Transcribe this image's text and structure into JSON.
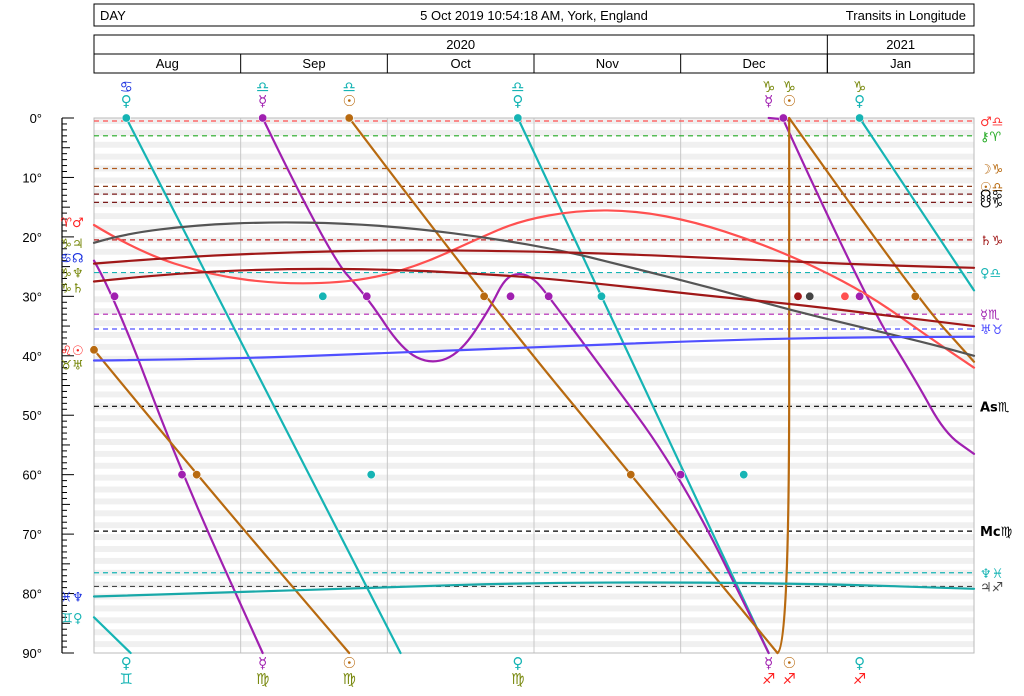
{
  "header": {
    "mode": "DAY",
    "datetime": "5 Oct 2019 10:54:18 AM, York, England",
    "label": "Transits in Longitude"
  },
  "chart_data": {
    "type": "line",
    "years": [
      {
        "label": "2020",
        "start": 0,
        "end": 5
      },
      {
        "label": "2021",
        "start": 5,
        "end": 6
      }
    ],
    "months": [
      "Aug",
      "Sep",
      "Oct",
      "Nov",
      "Dec",
      "Jan"
    ],
    "ylim": [
      0,
      90
    ],
    "y_ticks": [
      "0°",
      "10°",
      "20°",
      "30°",
      "40°",
      "50°",
      "60°",
      "70°",
      "80°",
      "90°"
    ],
    "natal_lines": [
      {
        "y": 0.5,
        "color": "#ff5050",
        "label": "♂♎",
        "label_colors": [
          "#ff3030",
          "#16b4b4"
        ]
      },
      {
        "y": 3,
        "color": "#22aa22",
        "label": "⚷♈",
        "label_colors": [
          "#22aa22",
          "#ff2020"
        ]
      },
      {
        "y": 8.5,
        "color": "#b05a1e",
        "label": "☽♑",
        "label_colors": [
          "#b86a10",
          "#7a8a10"
        ]
      },
      {
        "y": 11.5,
        "color": "#8b3a1a",
        "label": "☉♎",
        "label_colors": [
          "#b86a10",
          "#16b4b4"
        ]
      },
      {
        "y": 12.8,
        "color": "#7a1a1a",
        "label": "☊♋",
        "label_colors": [
          "#000000",
          "#1a30e0"
        ]
      },
      {
        "y": 14.2,
        "color": "#7a1a1a",
        "label": "☋♑",
        "label_colors": [
          "#000000",
          "#7a8a10"
        ]
      },
      {
        "y": 20.5,
        "color": "#c02020",
        "label": "♄♑",
        "label_colors": [
          "#a01818",
          "#7a8a10"
        ]
      },
      {
        "y": 26,
        "color": "#16b4b4",
        "label": "♀♎",
        "label_colors": [
          "#16b4b4",
          "#16b4b4"
        ]
      },
      {
        "y": 33,
        "color": "#b020b0",
        "label": "☿♏",
        "label_colors": [
          "#a020b0",
          "#a020b0"
        ]
      },
      {
        "y": 35.5,
        "color": "#5050ff",
        "label": "♅♉",
        "label_colors": [
          "#5050ff",
          "#7a8a10"
        ]
      },
      {
        "y": 48.5,
        "color": "#000000",
        "label": "As♏",
        "label_colors": [
          "#000000",
          "#1a30e0"
        ]
      },
      {
        "y": 69.5,
        "color": "#000000",
        "label": "Mc♍",
        "label_colors": [
          "#000000",
          "#7a8a10"
        ]
      },
      {
        "y": 76.5,
        "color": "#16b4b4",
        "label": "♆♓",
        "label_colors": [
          "#16b4b4",
          "#1a30e0"
        ]
      },
      {
        "y": 78.8,
        "color": "#444444",
        "label": "♃♐",
        "label_colors": [
          "#444444",
          "#ff2020"
        ]
      }
    ],
    "series": [
      {
        "color": "#16b4b4",
        "segments": [
          [
            [
              0,
              84
            ],
            [
              0.25,
              90
            ]
          ],
          [
            [
              0.22,
              0
            ],
            [
              2.09,
              90
            ]
          ],
          [
            [
              2.89,
              0
            ],
            [
              4.6,
              90
            ]
          ],
          [
            [
              5.22,
              0
            ],
            [
              6,
              29
            ]
          ]
        ]
      },
      {
        "color": "#a020b0",
        "segments": [
          [
            [
              0,
              24
            ],
            [
              0.14,
              30
            ],
            [
              0.6,
              60
            ],
            [
              1.15,
              90
            ]
          ],
          [
            [
              1.15,
              0
            ],
            [
              1.6,
              23
            ],
            [
              1.86,
              30
            ],
            [
              2.1,
              39
            ],
            [
              2.3,
              41.5
            ],
            [
              2.5,
              39.5
            ],
            [
              2.7,
              32
            ],
            [
              2.8,
              27
            ],
            [
              2.9,
              26
            ],
            [
              3.0,
              27
            ],
            [
              3.1,
              30
            ],
            [
              3.4,
              40
            ],
            [
              4.0,
              60
            ],
            [
              4.6,
              90
            ]
          ],
          [
            [
              4.6,
              0
            ],
            [
              4.74,
              0.3
            ]
          ],
          [
            [
              4.7,
              0.3
            ],
            [
              5.25,
              30
            ],
            [
              5.6,
              44
            ],
            [
              5.8,
              53
            ],
            [
              6,
              56.5
            ]
          ]
        ]
      },
      {
        "color": "#b86a10",
        "segments": [
          [
            [
              0,
              39
            ],
            [
              0.7,
              60
            ],
            [
              1.74,
              90
            ]
          ],
          [
            [
              1.74,
              0
            ],
            [
              2.66,
              30
            ],
            [
              3.66,
              60
            ],
            [
              4.66,
              90
            ]
          ],
          [
            [
              4.66,
              90
            ],
            [
              4.74,
              89
            ],
            [
              4.74,
              0
            ]
          ],
          [
            [
              4.74,
              0
            ],
            [
              5.6,
              30
            ],
            [
              6,
              41
            ]
          ]
        ]
      },
      {
        "color": "#ff5050",
        "segments": [
          [
            [
              -0.2,
              18
            ],
            [
              0.3,
              22.5
            ],
            [
              0.8,
              26.5
            ],
            [
              1.3,
              28
            ],
            [
              1.8,
              27.5
            ],
            [
              2.2,
              25
            ],
            [
              2.6,
              20.5
            ],
            [
              2.9,
              17.3
            ],
            [
              3.3,
              15.5
            ],
            [
              3.7,
              15.6
            ],
            [
              4.1,
              17.5
            ],
            [
              4.5,
              20.7
            ],
            [
              4.9,
              24.8
            ],
            [
              5.3,
              30
            ],
            [
              5.7,
              37
            ],
            [
              6,
              42
            ]
          ]
        ]
      },
      {
        "color": "#555555",
        "segments": [
          [
            [
              -0.2,
              21
            ],
            [
              0.2,
              19.5
            ],
            [
              0.7,
              18
            ],
            [
              1.2,
              17.5
            ],
            [
              1.7,
              17.7
            ],
            [
              2.2,
              18.6
            ],
            [
              2.7,
              20.2
            ],
            [
              3.2,
              22.3
            ],
            [
              3.7,
              25.4
            ],
            [
              4.2,
              28.5
            ],
            [
              4.7,
              32
            ],
            [
              5.2,
              35
            ],
            [
              5.7,
              38
            ],
            [
              6,
              40
            ]
          ]
        ]
      },
      {
        "color": "#a01818",
        "segments": [
          [
            [
              -0.2,
              27.5
            ],
            [
              0.5,
              26.2
            ],
            [
              1.3,
              25.3
            ],
            [
              2.1,
              25.5
            ],
            [
              2.9,
              26.6
            ],
            [
              3.5,
              28
            ],
            [
              4.1,
              29.7
            ],
            [
              4.8,
              31.4
            ],
            [
              5.4,
              33.2
            ],
            [
              6,
              35
            ]
          ]
        ]
      },
      {
        "color": "#a01818",
        "segments": [
          [
            [
              -0.2,
              24.5
            ],
            [
              0.5,
              23.5
            ],
            [
              1.3,
              22.6
            ],
            [
              2.1,
              22.2
            ],
            [
              2.9,
              22.4
            ],
            [
              3.5,
              22.8
            ],
            [
              4.1,
              23.4
            ],
            [
              4.8,
              24.2
            ],
            [
              5.4,
              24.8
            ],
            [
              6,
              25.2
            ]
          ]
        ]
      },
      {
        "color": "#5050ff",
        "segments": [
          [
            [
              -0.2,
              40.8
            ],
            [
              1,
              40.5
            ],
            [
              2,
              39.5
            ],
            [
              3,
              38.6
            ],
            [
              4,
              37.6
            ],
            [
              5,
              36.9
            ],
            [
              6,
              36.8
            ]
          ]
        ]
      },
      {
        "color": "#18a8a8",
        "segments": [
          [
            [
              -0.2,
              80.5
            ],
            [
              1,
              79.8
            ],
            [
              2,
              78.9
            ],
            [
              3,
              78.2
            ],
            [
              4,
              78.1
            ],
            [
              5,
              78.4
            ],
            [
              6,
              79.2
            ]
          ]
        ]
      }
    ],
    "markers": [
      {
        "x": 0.22,
        "y": 0,
        "color": "#16b4b4"
      },
      {
        "x": 1.15,
        "y": 0,
        "color": "#a020b0"
      },
      {
        "x": 1.74,
        "y": 0,
        "color": "#b86a10"
      },
      {
        "x": 2.89,
        "y": 0,
        "color": "#16b4b4"
      },
      {
        "x": 5.22,
        "y": 0,
        "color": "#16b4b4"
      },
      {
        "x": 4.7,
        "y": 0,
        "color": "#a020b0"
      },
      {
        "x": 0.14,
        "y": 30,
        "color": "#a020b0"
      },
      {
        "x": 1.56,
        "y": 30,
        "color": "#16b4b4"
      },
      {
        "x": 1.86,
        "y": 30,
        "color": "#a020b0"
      },
      {
        "x": 2.66,
        "y": 30,
        "color": "#b86a10"
      },
      {
        "x": 2.84,
        "y": 30,
        "color": "#a020b0"
      },
      {
        "x": 3.1,
        "y": 30,
        "color": "#a020b0"
      },
      {
        "x": 3.46,
        "y": 30,
        "color": "#16b4b4"
      },
      {
        "x": 4.8,
        "y": 30,
        "color": "#a01818"
      },
      {
        "x": 4.88,
        "y": 30,
        "color": "#444444"
      },
      {
        "x": 5.12,
        "y": 30,
        "color": "#ff5050"
      },
      {
        "x": 5.22,
        "y": 30,
        "color": "#a020b0"
      },
      {
        "x": 5.6,
        "y": 30,
        "color": "#b86a10"
      },
      {
        "x": 0.0,
        "y": 39,
        "color": "#b86a10"
      },
      {
        "x": 0.6,
        "y": 60,
        "color": "#a020b0"
      },
      {
        "x": 0.7,
        "y": 60,
        "color": "#b86a10"
      },
      {
        "x": 1.89,
        "y": 60,
        "color": "#16b4b4"
      },
      {
        "x": 3.66,
        "y": 60,
        "color": "#b86a10"
      },
      {
        "x": 4.0,
        "y": 60,
        "color": "#a020b0"
      },
      {
        "x": 4.43,
        "y": 60,
        "color": "#16b4b4"
      }
    ],
    "top_glyphs": [
      {
        "x": 0.22,
        "lines": [
          {
            "t": "♋",
            "c": "#1a30e0"
          },
          {
            "t": "♀",
            "c": "#16b4b4"
          }
        ]
      },
      {
        "x": 1.15,
        "lines": [
          {
            "t": "♎",
            "c": "#16b4b4"
          },
          {
            "t": "☿",
            "c": "#a020b0"
          }
        ]
      },
      {
        "x": 1.74,
        "lines": [
          {
            "t": "♎",
            "c": "#16b4b4"
          },
          {
            "t": "☉",
            "c": "#b86a10"
          }
        ]
      },
      {
        "x": 2.89,
        "lines": [
          {
            "t": "♎",
            "c": "#16b4b4"
          },
          {
            "t": "♀",
            "c": "#16b4b4"
          }
        ]
      },
      {
        "x": 4.6,
        "lines": [
          {
            "t": "♑",
            "c": "#7a8a10"
          },
          {
            "t": "☿",
            "c": "#a020b0"
          }
        ]
      },
      {
        "x": 4.74,
        "lines": [
          {
            "t": "♑",
            "c": "#7a8a10"
          },
          {
            "t": "☉",
            "c": "#b86a10"
          }
        ]
      },
      {
        "x": 5.22,
        "lines": [
          {
            "t": "♑",
            "c": "#7a8a10"
          },
          {
            "t": "♀",
            "c": "#16b4b4"
          }
        ]
      }
    ],
    "bottom_glyphs": [
      {
        "x": 0.22,
        "lines": [
          {
            "t": "♀",
            "c": "#16b4b4"
          },
          {
            "t": "♊",
            "c": "#16b4b4"
          }
        ]
      },
      {
        "x": 1.15,
        "lines": [
          {
            "t": "☿",
            "c": "#a020b0"
          },
          {
            "t": "♍",
            "c": "#7a8a10"
          }
        ]
      },
      {
        "x": 1.74,
        "lines": [
          {
            "t": "☉",
            "c": "#b86a10"
          },
          {
            "t": "♍",
            "c": "#7a8a10"
          }
        ]
      },
      {
        "x": 2.89,
        "lines": [
          {
            "t": "♀",
            "c": "#16b4b4"
          },
          {
            "t": "♍",
            "c": "#7a8a10"
          }
        ]
      },
      {
        "x": 4.6,
        "lines": [
          {
            "t": "☿",
            "c": "#a020b0"
          },
          {
            "t": "♐",
            "c": "#ff2020"
          }
        ]
      },
      {
        "x": 4.74,
        "lines": [
          {
            "t": "☉",
            "c": "#b86a10"
          },
          {
            "t": "♐",
            "c": "#ff2020"
          }
        ]
      },
      {
        "x": 5.22,
        "lines": [
          {
            "t": "♀",
            "c": "#16b4b4"
          },
          {
            "t": "♐",
            "c": "#ff2020"
          }
        ]
      }
    ],
    "left_glyphs": [
      {
        "y": 17.5,
        "t": "♈♂",
        "c": [
          "#ff2020",
          "#ff5050"
        ]
      },
      {
        "y": 21,
        "t": "♑♃",
        "c": [
          "#7a8a10",
          "#444444"
        ]
      },
      {
        "y": 23.5,
        "t": "♋☊",
        "c": [
          "#1a30e0",
          "#000000"
        ]
      },
      {
        "y": 26,
        "t": "♑♆",
        "c": [
          "#7a8a10",
          "#a01818"
        ]
      },
      {
        "y": 28.5,
        "t": "♑♄",
        "c": [
          "#7a8a10",
          "#a01818"
        ]
      },
      {
        "y": 39,
        "t": "♌☉",
        "c": [
          "#ff2020",
          "#b86a10"
        ]
      },
      {
        "y": 41.5,
        "t": "♉♅",
        "c": [
          "#7a8a10",
          "#5050ff"
        ]
      },
      {
        "y": 80.5,
        "t": "♓♆",
        "c": [
          "#1a30e0",
          "#16b4b4"
        ]
      },
      {
        "y": 84,
        "t": "♊♀",
        "c": [
          "#16b4b4",
          "#16b4b4"
        ]
      }
    ]
  }
}
